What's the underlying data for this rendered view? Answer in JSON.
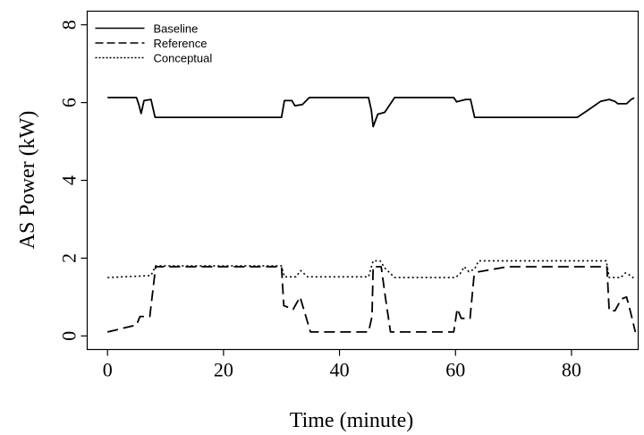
{
  "chart_data": {
    "type": "line",
    "title": "",
    "xlabel": "Time (minute)",
    "ylabel": "AS Power (kW)",
    "xlim": [
      -3.5,
      91.5
    ],
    "ylim": [
      -0.35,
      8.35
    ],
    "xticks": [
      0,
      20,
      40,
      60,
      80
    ],
    "yticks": [
      0,
      2,
      4,
      6,
      8
    ],
    "legend": {
      "placement": "top-left"
    },
    "grid": false,
    "series": [
      {
        "name": "Baseline",
        "style": "solid",
        "color": "#000000",
        "points": [
          [
            0,
            6.13
          ],
          [
            5,
            6.13
          ],
          [
            5.4,
            5.95
          ],
          [
            5.8,
            5.72
          ],
          [
            6.3,
            6.05
          ],
          [
            7.5,
            6.08
          ],
          [
            8.2,
            5.62
          ],
          [
            24,
            5.62
          ],
          [
            30,
            5.62
          ],
          [
            30.5,
            6.05
          ],
          [
            31.8,
            6.05
          ],
          [
            32.3,
            5.92
          ],
          [
            33.6,
            5.95
          ],
          [
            34.8,
            6.13
          ],
          [
            45,
            6.13
          ],
          [
            45.5,
            5.8
          ],
          [
            45.8,
            5.38
          ],
          [
            46.6,
            5.7
          ],
          [
            47.8,
            5.75
          ],
          [
            49.5,
            6.13
          ],
          [
            59.7,
            6.13
          ],
          [
            60.2,
            6.02
          ],
          [
            61,
            6.05
          ],
          [
            61.8,
            6.08
          ],
          [
            62.6,
            6.08
          ],
          [
            63.3,
            5.62
          ],
          [
            70,
            5.62
          ],
          [
            81,
            5.62
          ],
          [
            83,
            5.82
          ],
          [
            85,
            6.03
          ],
          [
            86.5,
            6.08
          ],
          [
            87.5,
            6.03
          ],
          [
            88,
            5.97
          ],
          [
            89.5,
            5.97
          ],
          [
            90.3,
            6.08
          ],
          [
            90.8,
            6.12
          ]
        ]
      },
      {
        "name": "Reference",
        "style": "dashed",
        "color": "#000000",
        "points": [
          [
            0,
            0.1
          ],
          [
            5,
            0.28
          ],
          [
            5.6,
            0.5
          ],
          [
            7.3,
            0.5
          ],
          [
            8.3,
            1.78
          ],
          [
            30,
            1.78
          ],
          [
            30.4,
            0.78
          ],
          [
            32,
            0.68
          ],
          [
            33.2,
            1.0
          ],
          [
            35,
            0.1
          ],
          [
            45,
            0.1
          ],
          [
            45.6,
            0.5
          ],
          [
            45.8,
            1.78
          ],
          [
            47.2,
            1.78
          ],
          [
            47.9,
            1.0
          ],
          [
            48.8,
            0.1
          ],
          [
            59.7,
            0.1
          ],
          [
            60.3,
            0.7
          ],
          [
            61,
            0.45
          ],
          [
            62.5,
            0.45
          ],
          [
            63.2,
            1.55
          ],
          [
            64,
            1.65
          ],
          [
            69,
            1.78
          ],
          [
            86.1,
            1.78
          ],
          [
            86.5,
            0.65
          ],
          [
            87.5,
            0.65
          ],
          [
            88.6,
            0.95
          ],
          [
            89.5,
            1.0
          ],
          [
            90.2,
            0.6
          ],
          [
            91,
            0.1
          ]
        ]
      },
      {
        "name": "Conceptual",
        "style": "dotted",
        "color": "#000000",
        "points": [
          [
            0,
            1.5
          ],
          [
            7.5,
            1.55
          ],
          [
            8.3,
            1.8
          ],
          [
            30,
            1.8
          ],
          [
            30.5,
            1.52
          ],
          [
            32.5,
            1.52
          ],
          [
            33.3,
            1.68
          ],
          [
            34.5,
            1.52
          ],
          [
            45,
            1.52
          ],
          [
            45.8,
            1.93
          ],
          [
            47,
            1.93
          ],
          [
            47.8,
            1.75
          ],
          [
            49.5,
            1.5
          ],
          [
            60,
            1.5
          ],
          [
            60.8,
            1.6
          ],
          [
            61.5,
            1.78
          ],
          [
            62.3,
            1.65
          ],
          [
            63.3,
            1.72
          ],
          [
            64,
            1.93
          ],
          [
            86,
            1.93
          ],
          [
            86.5,
            1.5
          ],
          [
            88.5,
            1.5
          ],
          [
            89.3,
            1.62
          ],
          [
            90.2,
            1.55
          ],
          [
            91,
            1.45
          ]
        ]
      }
    ]
  }
}
